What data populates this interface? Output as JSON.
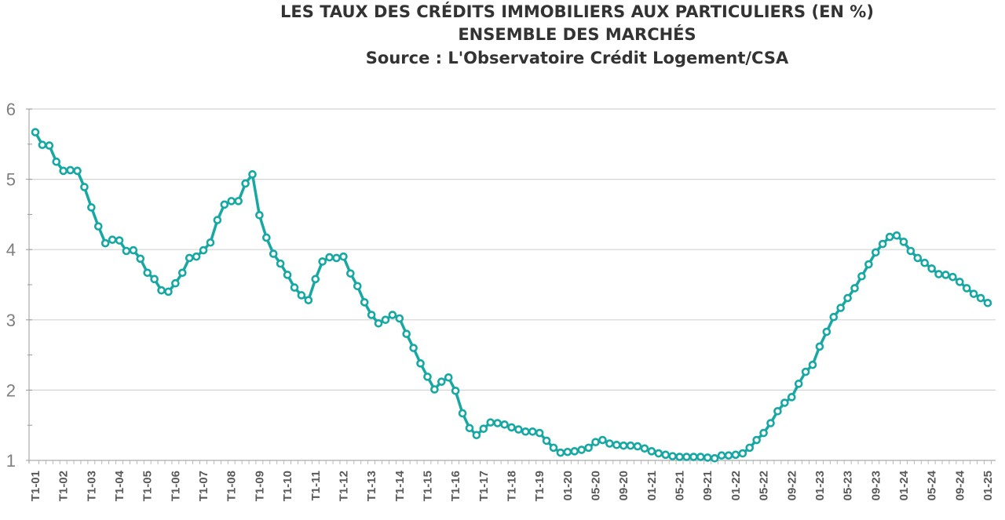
{
  "chart_data": {
    "type": "line",
    "title": [
      "LES TAUX DES CRÉDITS IMMOBILIERS AUX PARTICULIERS (EN %)",
      "ENSEMBLE DES MARCHÉS",
      "Source : L'Observatoire Crédit Logement/CSA"
    ],
    "xlabel": "",
    "ylabel": "",
    "ylim": [
      1,
      6
    ],
    "yticks": [
      "1",
      "2",
      "3",
      "4",
      "5",
      "6"
    ],
    "grid": true,
    "legend": "none",
    "line_color": "#17a8a3",
    "xtick_labels": [
      "T1-01",
      "T1-02",
      "T1-03",
      "T1-04",
      "T1-05",
      "T1-06",
      "T1-07",
      "T1-08",
      "T1-09",
      "T1-10",
      "T1-11",
      "T1-12",
      "T1-13",
      "T1-14",
      "T1-15",
      "T1-16",
      "T1-17",
      "T1-18",
      "T1-19",
      "01-20",
      "05-20",
      "09-20",
      "01-21",
      "05-21",
      "09-21",
      "01-22",
      "05-22",
      "09-22",
      "01-23",
      "05-23",
      "09-23",
      "01-24",
      "05-24",
      "09-24",
      "01-25"
    ],
    "quarterly_values_2001_2019": [
      5.67,
      5.49,
      5.48,
      5.25,
      5.12,
      5.13,
      5.12,
      4.89,
      4.6,
      4.33,
      4.09,
      4.14,
      4.13,
      3.98,
      3.99,
      3.87,
      3.67,
      3.58,
      3.42,
      3.4,
      3.52,
      3.67,
      3.88,
      3.9,
      3.99,
      4.1,
      4.42,
      4.64,
      4.69,
      4.69,
      4.94,
      5.07,
      4.49,
      4.17,
      3.94,
      3.8,
      3.64,
      3.46,
      3.35,
      3.28,
      3.58,
      3.83,
      3.89,
      3.88,
      3.9,
      3.66,
      3.48,
      3.25,
      3.07,
      2.95,
      3.0,
      3.07,
      3.02,
      2.8,
      2.6,
      2.38,
      2.19,
      2.01,
      2.12,
      2.18,
      1.99,
      1.67,
      1.46,
      1.36,
      1.45,
      1.54,
      1.53,
      1.51,
      1.47,
      1.44,
      1.41,
      1.41,
      1.39,
      1.28,
      1.18,
      1.11
    ],
    "monthly_values_2020_01_to_2025_01": [
      1.12,
      1.13,
      1.15,
      1.18,
      1.26,
      1.29,
      1.24,
      1.22,
      1.21,
      1.21,
      1.2,
      1.17,
      1.13,
      1.1,
      1.08,
      1.06,
      1.05,
      1.05,
      1.05,
      1.05,
      1.04,
      1.03,
      1.07,
      1.07,
      1.08,
      1.1,
      1.18,
      1.29,
      1.39,
      1.53,
      1.7,
      1.82,
      1.9,
      2.09,
      2.26,
      2.36,
      2.62,
      2.83,
      3.04,
      3.17,
      3.31,
      3.45,
      3.62,
      3.79,
      3.96,
      4.08,
      4.18,
      4.2,
      4.11,
      3.98,
      3.88,
      3.81,
      3.73,
      3.65,
      3.64,
      3.61,
      3.54,
      3.45,
      3.37,
      3.31,
      3.24
    ]
  }
}
